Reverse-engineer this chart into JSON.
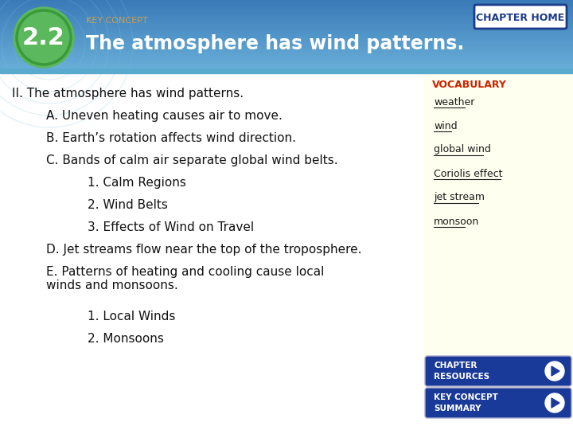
{
  "title_number": "2.2",
  "key_concept_label": "KEY CONCEPT",
  "main_title": "The atmosphere has wind patterns.",
  "chapter_home_text": "CHAPTER HOME",
  "header_gradient_start": "#3a7ab8",
  "header_gradient_end": "#6ab0d8",
  "circle_outer_color": "#5cb85c",
  "circle_text_color": "#ffffff",
  "key_concept_color": "#c8a050",
  "main_title_color": "#ffffff",
  "body_bg_color": "#ffffff",
  "sidebar_bg_color": "#fffff0",
  "chapter_home_box_color": "#ffffff",
  "chapter_home_box_border": "#1a3a8a",
  "chapter_home_text_color": "#1a3a8a",
  "vocabulary_color": "#cc2200",
  "vocab_items_color": "#1a1a1a",
  "button_bg_color": "#1a3a9a",
  "button_text_color": "#ffffff",
  "outline_items": [
    {
      "text": "II. The atmosphere has wind patterns.",
      "indent": 0,
      "level": 0
    },
    {
      "text": "A. Uneven heating causes air to move.",
      "indent": 1,
      "level": 1
    },
    {
      "text": "B. Earth’s rotation affects wind direction.",
      "indent": 1,
      "level": 1
    },
    {
      "text": "C. Bands of calm air separate global wind belts.",
      "indent": 1,
      "level": 1
    },
    {
      "text": "1. Calm Regions",
      "indent": 2,
      "level": 2
    },
    {
      "text": "2. Wind Belts",
      "indent": 2,
      "level": 2
    },
    {
      "text": "3. Effects of Wind on Travel",
      "indent": 2,
      "level": 2
    },
    {
      "text": "D. Jet streams flow near the top of the troposphere.",
      "indent": 1,
      "level": 1
    },
    {
      "text": "E. Patterns of heating and cooling cause local\nwinds and monsoons.",
      "indent": 1,
      "level": 1
    },
    {
      "text": "1. Local Winds",
      "indent": 2,
      "level": 2
    },
    {
      "text": "2. Monsoons",
      "indent": 2,
      "level": 2
    }
  ],
  "vocab_items": [
    "weather",
    "wind",
    "global wind",
    "Coriolis effect",
    "jet stream",
    "monsoon"
  ],
  "button1_text": "CHAPTER\nRESOURCES",
  "button2_text": "KEY CONCEPT\nSUMMARY"
}
